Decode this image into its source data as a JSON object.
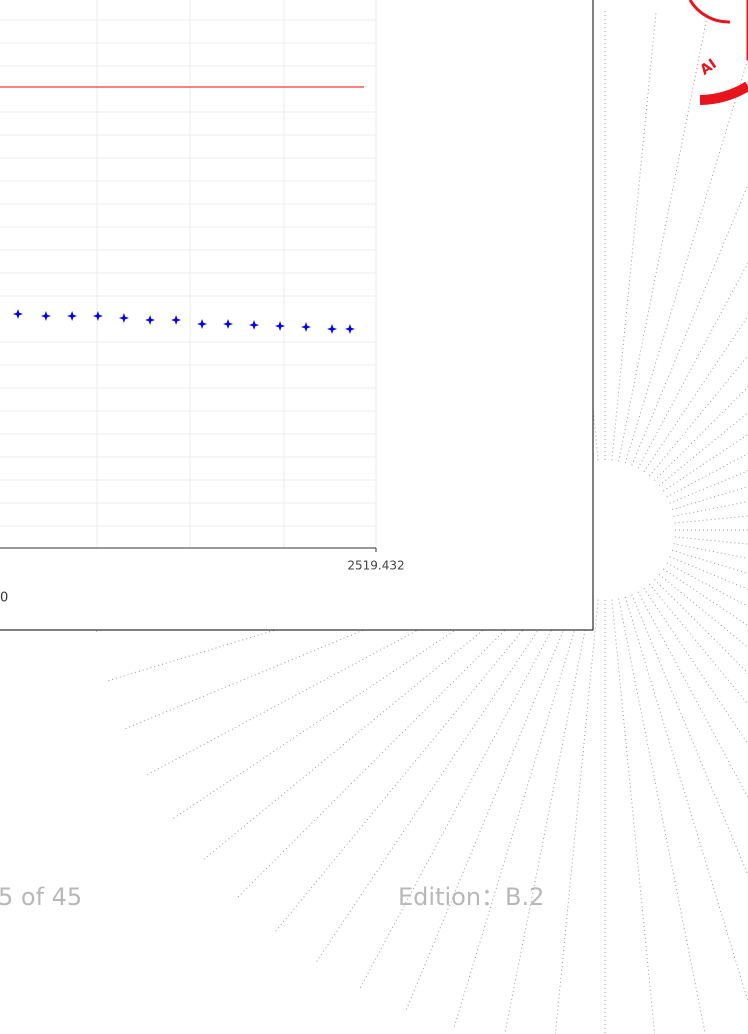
{
  "chart_data": {
    "type": "scatter",
    "x": [
      2279.8,
      2298.5,
      2316.0,
      2333.3,
      2350.7,
      2368.2,
      2385.6,
      2403.0,
      2420.4,
      2437.8,
      2455.2,
      2472.6,
      2490.0,
      2502.0
    ],
    "series": [
      {
        "color": "#0000ff",
        "values": [
          46.8,
          46.4,
          46.4,
          46.4,
          46.0,
          45.6,
          45.6,
          44.8,
          44.8,
          44.6,
          44.4,
          44.2,
          43.8,
          43.8
        ]
      }
    ],
    "limit_line": {
      "value": 92.2,
      "color": "#ff0000"
    },
    "xlim": [
      2000,
      2519.432
    ],
    "ylim": [
      0,
      100
    ],
    "xticks": [
      2519.432
    ],
    "axis_fragment": "0"
  },
  "footer": {
    "page": "5 of 45",
    "edition": "Edition：B.2"
  }
}
